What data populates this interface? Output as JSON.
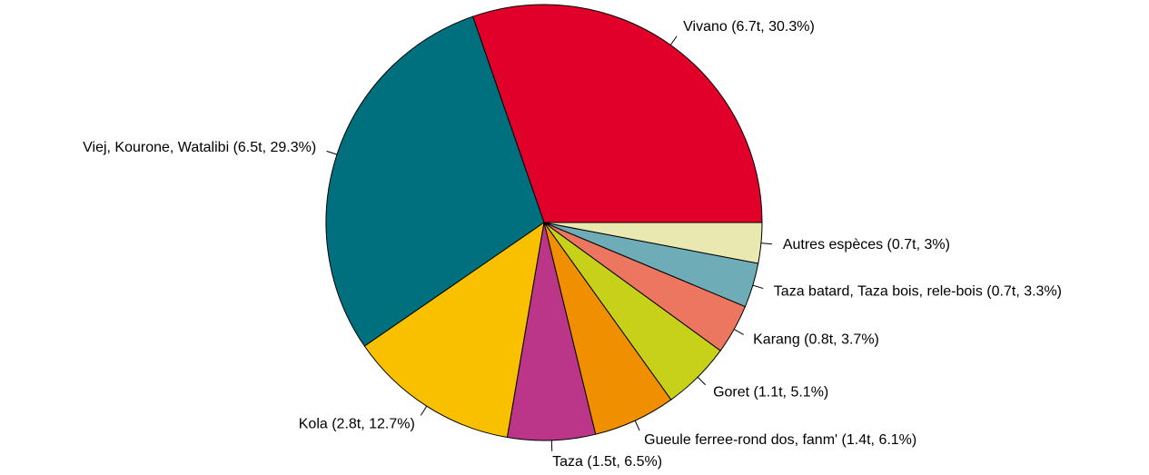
{
  "chart_data": {
    "type": "pie",
    "values": [
      30.3,
      29.3,
      12.7,
      6.5,
      6.1,
      5.1,
      3.7,
      3.3,
      3
    ],
    "value_labels": [
      "Vivano (6.7t, 30.3%)",
      "Viej, Kourone, Watalibi (6.5t, 29.3%)",
      "Kola (2.8t, 12.7%)",
      "Taza (1.5t, 6.5%)",
      "Gueule ferree-rond dos, fanm' (1.4t, 6.1%)",
      "Goret (1.1t, 5.1%)",
      "Karang (0.8t, 3.7%)",
      "Taza batard, Taza bois, rele-bois (0.7t, 3.3%)",
      "Autres espèces (0.7t, 3%)"
    ],
    "colors": [
      "#e1002a",
      "#00707f",
      "#f9c000",
      "#bb3589",
      "#f09000",
      "#c8d11a",
      "#ec7660",
      "#6eacb8",
      "#e8e8b0"
    ]
  }
}
